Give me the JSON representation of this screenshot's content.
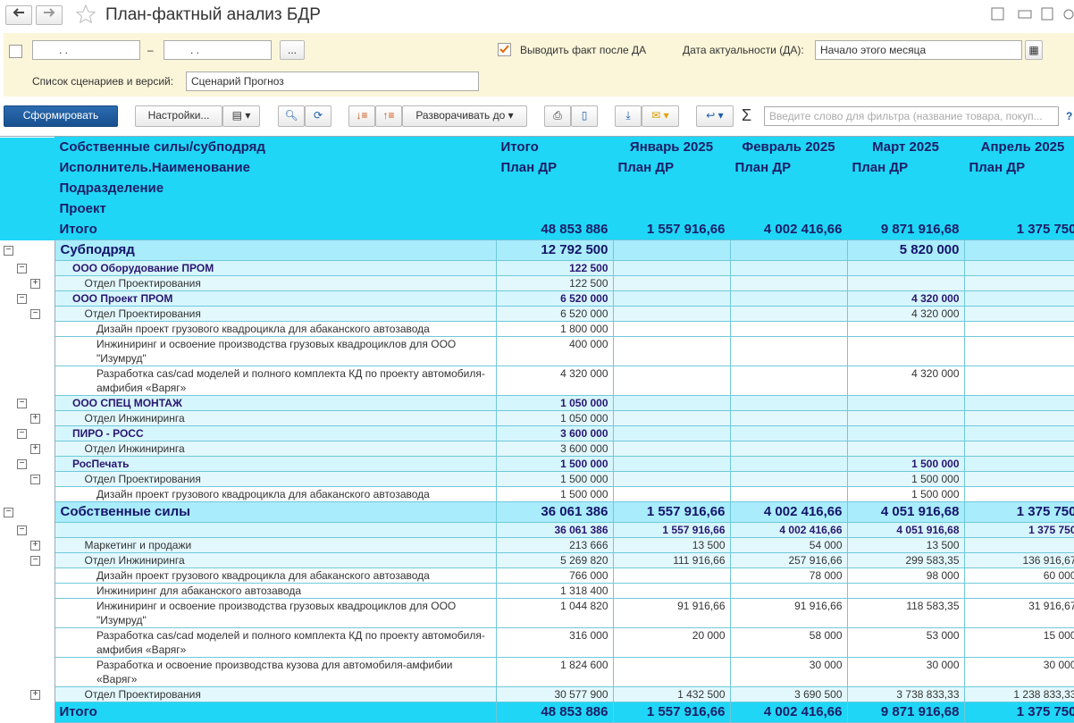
{
  "window": {
    "title": "План-фактный анализ БДР"
  },
  "filters": {
    "date_placeholder": ".  .",
    "dash": "–",
    "more": "...",
    "show_fact": "Выводить факт после ДА",
    "date_label": "Дата актуальности (ДА):",
    "date_value": "Начало этого месяца",
    "scenarios_label": "Список сценариев и версий:",
    "scenarios_value": "Сценарий Прогноз"
  },
  "toolbar": {
    "generate": "Сформировать",
    "settings": "Настройки...",
    "expand_to": "Разворачивать до",
    "sigma": "Σ",
    "search_placeholder": "Введите слово для фильтра (название товара, покуп...",
    "help": "?"
  },
  "table": {
    "header_names": [
      "Собственные силы/субподряд",
      "Исполнитель.Наименование",
      "Подразделение",
      "Проект"
    ],
    "columns": [
      {
        "title": "Итого",
        "sub": "План ДР"
      },
      {
        "title": "Январь 2025",
        "sub": "План ДР"
      },
      {
        "title": "Февраль 2025",
        "sub": "План ДР"
      },
      {
        "title": "Март 2025",
        "sub": "План ДР"
      },
      {
        "title": "Апрель 2025",
        "sub": "План ДР"
      }
    ],
    "header_total": {
      "label": "Итого",
      "values": [
        "48 853 886",
        "1 557 916,66",
        "4 002 416,66",
        "9 871 916,68",
        "1 375 750"
      ]
    },
    "rows": [
      {
        "name": "Субподряд",
        "level": 0,
        "style": "group",
        "expander": "minus",
        "values": [
          "12 792 500",
          null,
          null,
          "5 820 000",
          null
        ]
      },
      {
        "name": "ООО Оборудование ПРОМ",
        "level": 1,
        "style": "bold",
        "expander": "minus",
        "values": [
          "122 500",
          null,
          null,
          null,
          null
        ]
      },
      {
        "name": "Отдел Проектирования",
        "level": 2,
        "style": "sub",
        "expander": "plus",
        "values": [
          "122 500",
          null,
          null,
          null,
          null
        ]
      },
      {
        "name": "ООО Проект ПРОМ",
        "level": 1,
        "style": "bold",
        "expander": "minus",
        "values": [
          "6 520 000",
          null,
          null,
          "4 320 000",
          null
        ]
      },
      {
        "name": "Отдел Проектирования",
        "level": 2,
        "style": "sub",
        "expander": "minus",
        "values": [
          "6 520 000",
          null,
          null,
          "4 320 000",
          null
        ]
      },
      {
        "name": "Дизайн проект грузового квадроцикла для абаканского автозавода",
        "level": 3,
        "style": "plain",
        "values": [
          "1 800 000",
          null,
          null,
          null,
          null
        ]
      },
      {
        "name": "Инжиниринг и освоение производства грузовых квадроциклов для ООО \"Изумруд\"",
        "level": 3,
        "style": "plain",
        "values": [
          "400 000",
          null,
          null,
          null,
          null
        ]
      },
      {
        "name": "Разработка cas/cad моделей и полного комплекта КД по проекту автомобиля-амфибия «Варяг»",
        "level": 3,
        "style": "plain",
        "values": [
          "4 320 000",
          null,
          null,
          "4 320 000",
          null
        ]
      },
      {
        "name": "ООО СПЕЦ МОНТАЖ",
        "level": 1,
        "style": "bold",
        "expander": "minus",
        "values": [
          "1 050 000",
          null,
          null,
          null,
          null
        ]
      },
      {
        "name": "Отдел Инжиниринга",
        "level": 2,
        "style": "sub",
        "expander": "plus",
        "values": [
          "1 050 000",
          null,
          null,
          null,
          null
        ]
      },
      {
        "name": "ПИРО - РОСС",
        "level": 1,
        "style": "bold",
        "expander": "minus",
        "values": [
          "3 600 000",
          null,
          null,
          null,
          null
        ]
      },
      {
        "name": "Отдел Инжиниринга",
        "level": 2,
        "style": "sub",
        "expander": "plus",
        "values": [
          "3 600 000",
          null,
          null,
          null,
          null
        ]
      },
      {
        "name": "РосПечать",
        "level": 1,
        "style": "bold",
        "expander": "minus",
        "values": [
          "1 500 000",
          null,
          null,
          "1 500 000",
          null
        ]
      },
      {
        "name": "Отдел Проектирования",
        "level": 2,
        "style": "sub",
        "expander": "minus",
        "values": [
          "1 500 000",
          null,
          null,
          "1 500 000",
          null
        ]
      },
      {
        "name": "Дизайн проект грузового квадроцикла для абаканского автозавода",
        "level": 3,
        "style": "plain",
        "values": [
          "1 500 000",
          null,
          null,
          "1 500 000",
          null
        ]
      },
      {
        "name": "Собственные силы",
        "level": 0,
        "style": "group",
        "expander": "minus",
        "values": [
          "36 061 386",
          "1 557 916,66",
          "4 002 416,66",
          "4 051 916,68",
          "1 375 750"
        ]
      },
      {
        "name": null,
        "level": 1,
        "style": "bold",
        "expander": "minus",
        "values": [
          "36 061 386",
          "1 557 916,66",
          "4 002 416,66",
          "4 051 916,68",
          "1 375 750"
        ]
      },
      {
        "name": "Маркетинг и продажи",
        "level": 2,
        "style": "sub",
        "expander": "plus",
        "values": [
          "213 666",
          "13 500",
          "54 000",
          "13 500",
          null
        ]
      },
      {
        "name": "Отдел Инжиниринга",
        "level": 2,
        "style": "sub",
        "expander": "minus",
        "values": [
          "5 269 820",
          "111 916,66",
          "257 916,66",
          "299 583,35",
          "136 916,67"
        ]
      },
      {
        "name": "Дизайн проект грузового квадроцикла для абаканского автозавода",
        "level": 3,
        "style": "plain",
        "values": [
          "766 000",
          null,
          "78 000",
          "98 000",
          "60 000"
        ]
      },
      {
        "name": "Инжиниринг для абаканского автозавода",
        "level": 3,
        "style": "plain",
        "values": [
          "1 318 400",
          null,
          null,
          null,
          null
        ]
      },
      {
        "name": "Инжиниринг и освоение производства грузовых квадроциклов для ООО \"Изумруд\"",
        "level": 3,
        "style": "plain",
        "values": [
          "1 044 820",
          "91 916,66",
          "91 916,66",
          "118 583,35",
          "31 916,67"
        ]
      },
      {
        "name": "Разработка cas/cad моделей и полного комплекта КД по проекту автомобиля-амфибия «Варяг»",
        "level": 3,
        "style": "plain",
        "values": [
          "316 000",
          "20 000",
          "58 000",
          "53 000",
          "15 000"
        ]
      },
      {
        "name": "Разработка и освоение производства кузова для автомобиля-амфибии «Варяг»",
        "level": 3,
        "style": "plain",
        "values": [
          "1 824 600",
          null,
          "30 000",
          "30 000",
          "30 000"
        ]
      },
      {
        "name": "Отдел Проектирования",
        "level": 2,
        "style": "sub",
        "expander": "plus",
        "values": [
          "30 577 900",
          "1 432 500",
          "3 690 500",
          "3 738 833,33",
          "1 238 833,33"
        ]
      }
    ],
    "footer": {
      "label": "Итого",
      "values": [
        "48 853 886",
        "1 557 916,66",
        "4 002 416,66",
        "9 871 916,68",
        "1 375 750"
      ]
    }
  }
}
